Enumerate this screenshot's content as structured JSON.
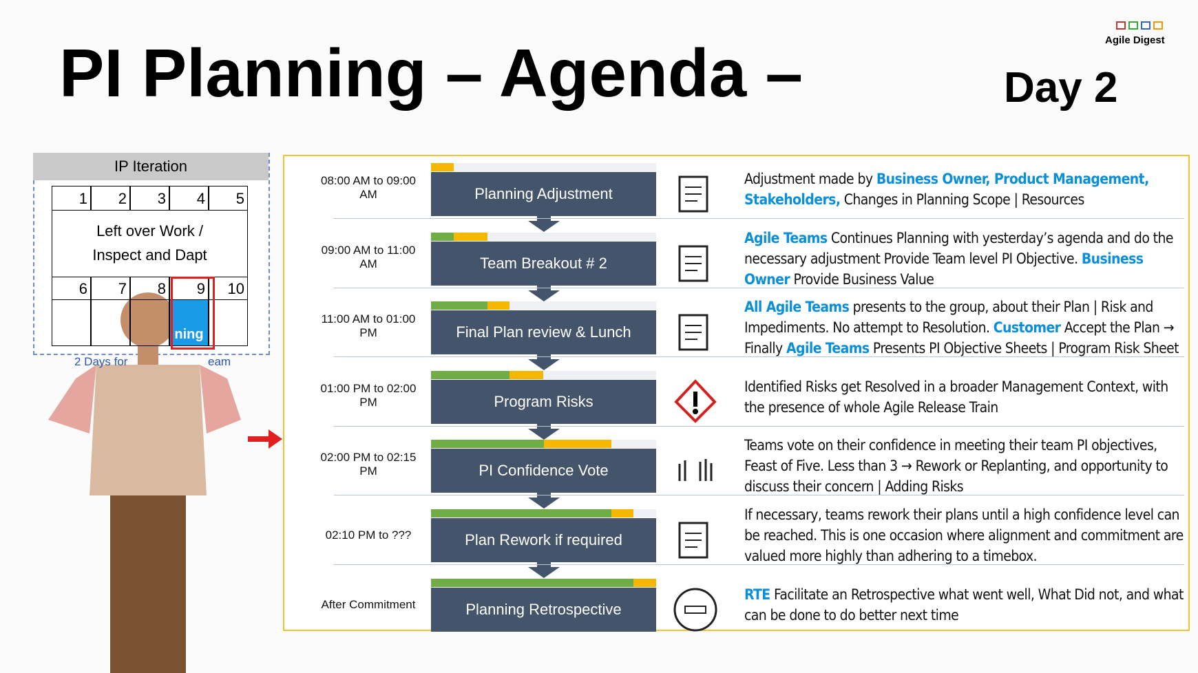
{
  "header": {
    "title": "PI Planning – Agenda –",
    "subtitle": "Day 2",
    "brand": "Agile Digest"
  },
  "ip_iteration": {
    "title": "IP Iteration",
    "numbers_top": [
      "1",
      "2",
      "3",
      "4",
      "5"
    ],
    "middle_text": "Left over Work / Inspect and Dapt",
    "numbers_bottom": [
      "6",
      "7",
      "8",
      "9",
      "10"
    ],
    "cell_text": "ning",
    "caption": "2 Days for",
    "caption_end": "eam"
  },
  "agenda": {
    "rows": [
      {
        "time": "08:00 AM to 09:00 AM",
        "step": "Planning Adjustment",
        "description": [
          {
            "text": "Adjustment made by "
          },
          {
            "text": "Business Owner, Product Management, Stakeholders,",
            "highlight": true
          },
          {
            "text": " Changes in Planning Scope | Resources"
          }
        ]
      },
      {
        "time": "09:00 AM to 11:00 AM",
        "step": "Team Breakout # 2",
        "description": [
          {
            "text": "Agile Teams",
            "highlight": true
          },
          {
            "text": " Continues Planning with yesterday’s agenda and do the necessary adjustment Provide Team level PI Objective. "
          },
          {
            "text": "Business Owner",
            "highlight": true
          },
          {
            "text": " Provide Business Value"
          }
        ]
      },
      {
        "time": "11:00 AM to 01:00 PM",
        "step": "Final Plan review & Lunch",
        "description": [
          {
            "text": "All Agile Teams",
            "highlight": true
          },
          {
            "text": " presents to the group, about their Plan | Risk and Impediments. No attempt to Resolution. "
          },
          {
            "text": "Customer",
            "highlight": true
          },
          {
            "text": " Accept the Plan → Finally "
          },
          {
            "text": "Agile Teams",
            "highlight": true
          },
          {
            "text": " Presents PI Objective Sheets | Program Risk Sheet"
          }
        ]
      },
      {
        "time": "01:00 PM to 02:00 PM",
        "step": "Program Risks",
        "description": [
          {
            "text": "Identified Risks get Resolved in a broader Management Context, with the presence of whole Agile Release Train"
          }
        ]
      },
      {
        "time": "02:00 PM to 02:15 PM",
        "step": "PI Confidence Vote",
        "description": [
          {
            "text": "Teams vote on their confidence in meeting their team PI objectives, Feast of Five. Less than 3 → Rework or Replanting, and opportunity to discuss their concern | Adding Risks"
          }
        ]
      },
      {
        "time": "02:10 PM to ???",
        "step": "Plan Rework if required",
        "description": [
          {
            "text": "If necessary, teams rework their plans until a high confidence level can be reached. This is one occasion where alignment and commitment are valued more highly than adhering to a timebox."
          }
        ]
      },
      {
        "time": "After Commitment",
        "step": "Planning Retrospective",
        "description": [
          {
            "text": "RTE",
            "highlight": true
          },
          {
            "text": " Facilitate an Retrospective what went well, What Did not, and what can be done to do better next time"
          }
        ]
      }
    ]
  }
}
